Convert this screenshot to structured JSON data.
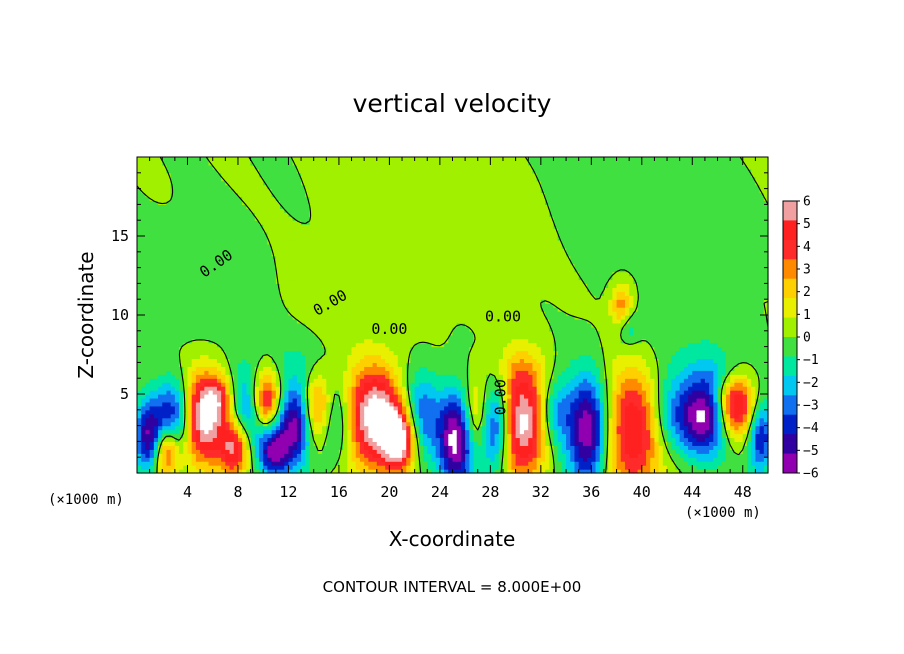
{
  "chart_data": {
    "type": "heatmap",
    "title": "vertical velocity",
    "xlabel": "X-coordinate",
    "ylabel": "Z-coordinate",
    "x_unit_label": "(×1000 m)",
    "x_unit_label_right": "(×1000 m)",
    "contour_interval_text": "CONTOUR INTERVAL = 8.000E+00",
    "contour_label": "0.00",
    "xlim": [
      0,
      50
    ],
    "ylim": [
      0,
      20
    ],
    "xticks": [
      4,
      8,
      12,
      16,
      20,
      24,
      28,
      32,
      36,
      40,
      44,
      48
    ],
    "xtick_labels": [
      "4",
      "8",
      "12",
      "16",
      "20",
      "24",
      "28",
      "32",
      "36",
      "40",
      "44",
      "48"
    ],
    "yticks": [
      5,
      10,
      15
    ],
    "ytick_labels": [
      "5",
      "10",
      "15"
    ],
    "colorbar": {
      "min": -6,
      "max": 6,
      "ticks": [
        6,
        5,
        4,
        3,
        2,
        1,
        0,
        -1,
        -2,
        -3,
        -4,
        -5,
        -6
      ],
      "tick_labels": [
        "6",
        "5",
        "4",
        "3",
        "2",
        "1",
        "0",
        "−1",
        "−2",
        "−3",
        "−4",
        "−5",
        "−6"
      ],
      "colors": [
        "#f0a0a0",
        "#ff2020",
        "#ff2a2a",
        "#ff8a00",
        "#ffd000",
        "#e8f000",
        "#a0f000",
        "#40e040",
        "#00e8a0",
        "#00c8f0",
        "#1070f0",
        "#0020c8",
        "#3000a0",
        "#9000b0"
      ],
      "saturated_color": "#ffffff"
    },
    "features": [
      {
        "x": 1.0,
        "z": 2.3,
        "w": -5.5,
        "sx": 0.9,
        "sz": 1.6
      },
      {
        "x": 2.3,
        "z": 1.5,
        "w": 5.5,
        "sx": 0.7,
        "sz": 1.2
      },
      {
        "x": 3.0,
        "z": 3.6,
        "w": -4.5,
        "sx": 1.0,
        "sz": 1.7
      },
      {
        "x": 5.2,
        "z": 3.4,
        "w": 6.5,
        "sx": 1.2,
        "sz": 2.1
      },
      {
        "x": 7.8,
        "z": 1.6,
        "w": 5.5,
        "sx": 0.9,
        "sz": 1.3
      },
      {
        "x": 6.5,
        "z": 4.8,
        "w": 3.0,
        "sx": 0.8,
        "sz": 1.0
      },
      {
        "x": 8.8,
        "z": 3.8,
        "w": -3.5,
        "sx": 1.0,
        "sz": 2.0
      },
      {
        "x": 10.2,
        "z": 4.6,
        "w": 5.5,
        "sx": 0.8,
        "sz": 1.4
      },
      {
        "x": 10.8,
        "z": 1.4,
        "w": -5.0,
        "sx": 0.9,
        "sz": 1.2
      },
      {
        "x": 12.6,
        "z": 3.2,
        "w": -5.8,
        "sx": 1.0,
        "sz": 1.8
      },
      {
        "x": 14.3,
        "z": 4.0,
        "w": 5.0,
        "sx": 0.9,
        "sz": 1.6
      },
      {
        "x": 15.5,
        "z": 3.3,
        "w": -3.0,
        "sx": 1.0,
        "sz": 1.8
      },
      {
        "x": 18.8,
        "z": 3.5,
        "w": 6.8,
        "sx": 1.6,
        "sz": 2.4
      },
      {
        "x": 20.8,
        "z": 2.1,
        "w": 6.0,
        "sx": 0.9,
        "sz": 1.4
      },
      {
        "x": 22.5,
        "z": 3.6,
        "w": -3.5,
        "sx": 1.0,
        "sz": 2.0
      },
      {
        "x": 25.3,
        "z": 2.2,
        "w": -6.5,
        "sx": 1.0,
        "sz": 2.2
      },
      {
        "x": 27.0,
        "z": 3.6,
        "w": 3.5,
        "sx": 0.9,
        "sz": 1.8
      },
      {
        "x": 28.3,
        "z": 3.0,
        "w": -6.2,
        "sx": 0.9,
        "sz": 2.0
      },
      {
        "x": 30.6,
        "z": 3.2,
        "w": 6.8,
        "sx": 1.5,
        "sz": 2.4
      },
      {
        "x": 33.0,
        "z": 3.8,
        "w": -3.5,
        "sx": 1.0,
        "sz": 1.6
      },
      {
        "x": 35.8,
        "z": 2.6,
        "w": -6.8,
        "sx": 1.2,
        "sz": 2.5
      },
      {
        "x": 39.4,
        "z": 2.6,
        "w": 5.6,
        "sx": 2.0,
        "sz": 2.8
      },
      {
        "x": 42.0,
        "z": 3.5,
        "w": -3.5,
        "sx": 1.2,
        "sz": 2.0
      },
      {
        "x": 44.8,
        "z": 3.6,
        "w": -6.0,
        "sx": 1.3,
        "sz": 1.8
      },
      {
        "x": 47.5,
        "z": 4.3,
        "w": 5.5,
        "sx": 1.0,
        "sz": 1.4
      },
      {
        "x": 49.4,
        "z": 2.2,
        "w": -4.5,
        "sx": 0.7,
        "sz": 1.6
      },
      {
        "x": 38.4,
        "z": 10.6,
        "w": 3.2,
        "sx": 0.6,
        "sz": 1.0
      },
      {
        "x": 38.9,
        "z": 9.2,
        "w": -1.6,
        "sx": 0.6,
        "sz": 0.8
      },
      {
        "x": 5.0,
        "z": 12.0,
        "w": -0.7,
        "sx": 3.0,
        "sz": 2.5
      },
      {
        "x": 24.0,
        "z": 14.5,
        "w": 0.6,
        "sx": 5.0,
        "sz": 3.0
      },
      {
        "x": 30.0,
        "z": 6.5,
        "w": 1.0,
        "sx": 1.5,
        "sz": 1.0
      },
      {
        "x": 44.0,
        "z": 9.0,
        "w": -0.8,
        "sx": 3.0,
        "sz": 2.0
      },
      {
        "x": 12.0,
        "z": 7.0,
        "w": -0.8,
        "sx": 2.0,
        "sz": 1.2
      },
      {
        "x": 46.0,
        "z": 6.5,
        "w": -1.2,
        "sx": 1.5,
        "sz": 0.8
      },
      {
        "x": 16.0,
        "z": 11.5,
        "w": 0.7,
        "sx": 2.5,
        "sz": 1.5
      },
      {
        "x": 40.0,
        "z": 16.0,
        "w": -0.5,
        "sx": 4.0,
        "sz": 2.5
      }
    ]
  }
}
